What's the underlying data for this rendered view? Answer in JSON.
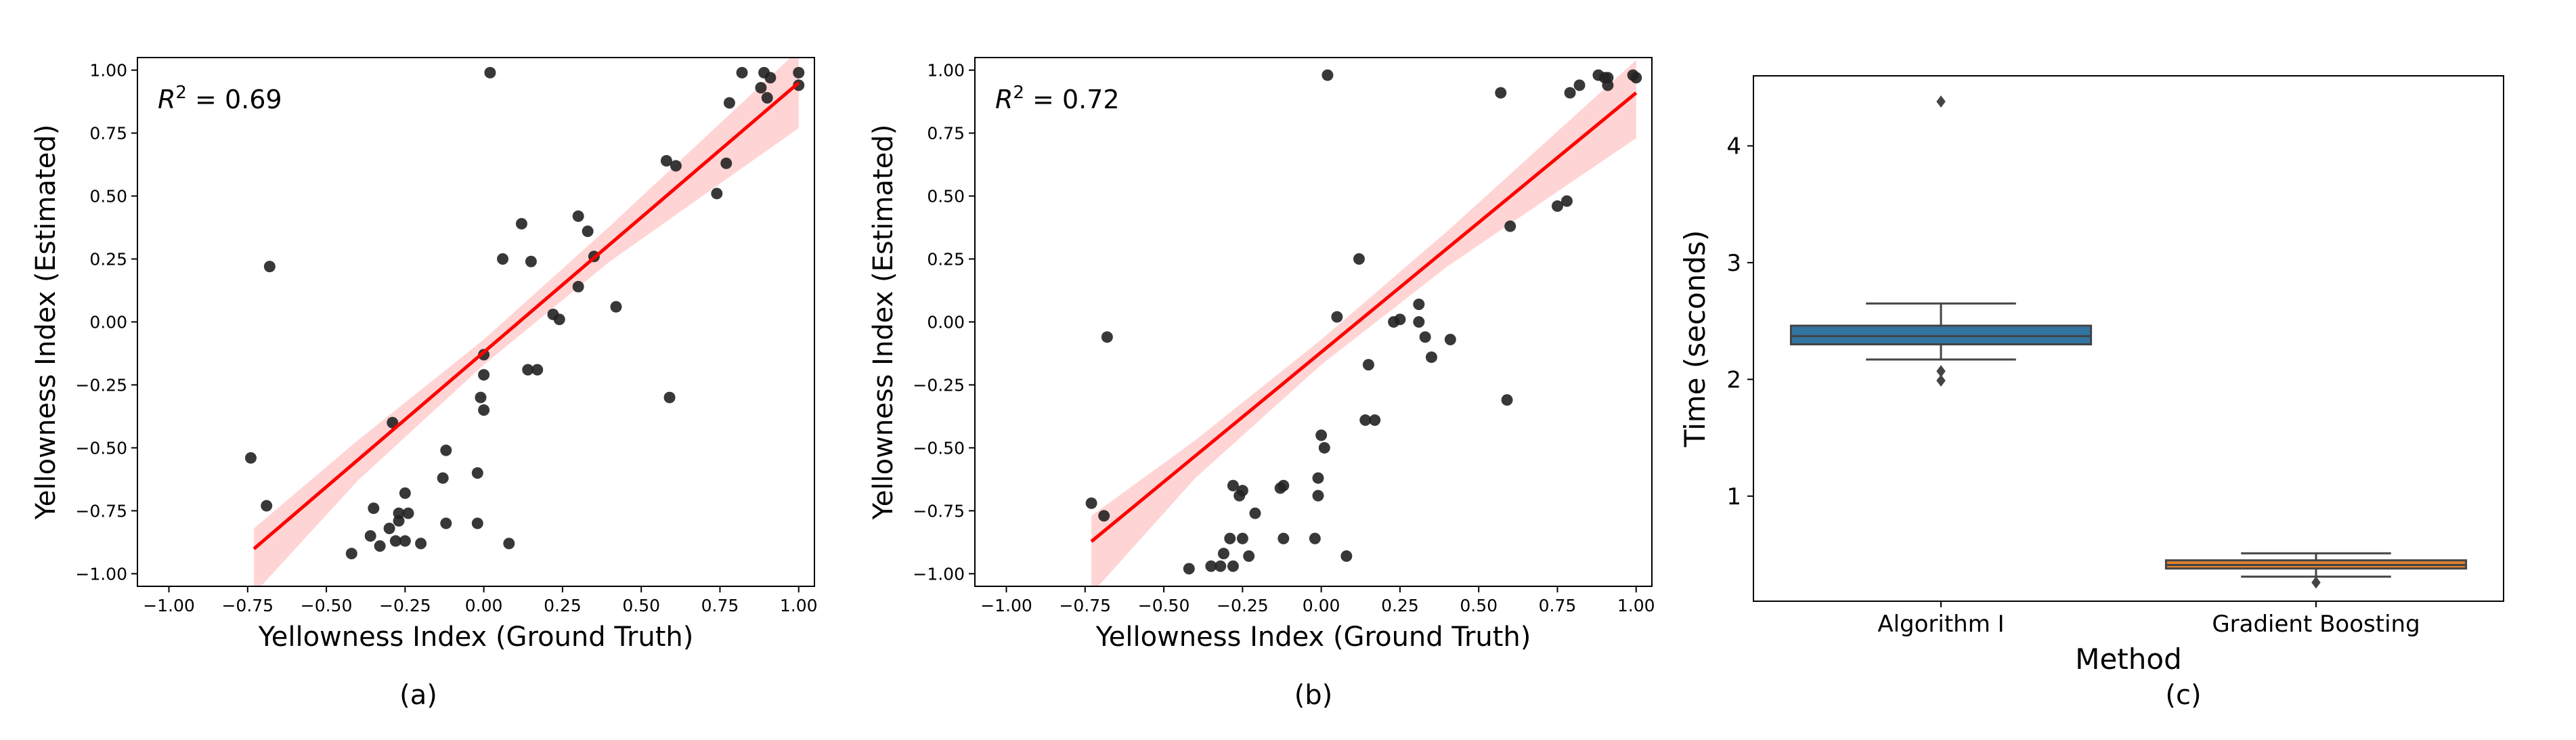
{
  "chart_data": [
    {
      "type": "scatter",
      "panel_label": "(a)",
      "annotation": "R² = 0.69",
      "annotation_parts": {
        "prefix": "R",
        "superscript": "2",
        "suffix": " = 0.69"
      },
      "xlabel": "Yellowness Index (Ground Truth)",
      "ylabel": "Yellowness Index (Estimated)",
      "xlim": [
        -1.1,
        1.05
      ],
      "ylim": [
        -1.05,
        1.05
      ],
      "xticks": [
        -1.0,
        -0.75,
        -0.5,
        -0.25,
        0.0,
        0.25,
        0.5,
        0.75,
        1.0
      ],
      "xtick_labels": [
        "−1.00",
        "−0.75",
        "−0.50",
        "−0.25",
        "0.00",
        "0.25",
        "0.50",
        "0.75",
        "1.00"
      ],
      "yticks": [
        -1.0,
        -0.75,
        -0.5,
        -0.25,
        0.0,
        0.25,
        0.5,
        0.75,
        1.0
      ],
      "ytick_labels": [
        "−1.00",
        "−0.75",
        "−0.50",
        "−0.25",
        "0.00",
        "0.25",
        "0.50",
        "0.75",
        "1.00"
      ],
      "grid": false,
      "point_color": "#222222",
      "fit_color": "#ff0000",
      "band_color": "#ffcccc",
      "regression": {
        "x_range": [
          -0.73,
          1.0
        ],
        "intercept": -0.12,
        "slope": 1.07
      },
      "confidence_band": [
        {
          "x": -0.73,
          "lower": -1.08,
          "upper": -0.82
        },
        {
          "x": -0.4,
          "lower": -0.63,
          "upper": -0.47
        },
        {
          "x": 0.0,
          "lower": -0.17,
          "upper": -0.07
        },
        {
          "x": 0.4,
          "lower": 0.24,
          "upper": 0.38
        },
        {
          "x": 1.0,
          "lower": 0.77,
          "upper": 1.08
        }
      ],
      "points": [
        [
          0.02,
          0.99
        ],
        [
          0.82,
          0.99
        ],
        [
          0.89,
          0.99
        ],
        [
          0.91,
          0.97
        ],
        [
          1.0,
          0.99
        ],
        [
          1.0,
          0.94
        ],
        [
          0.88,
          0.93
        ],
        [
          0.9,
          0.89
        ],
        [
          0.78,
          0.87
        ],
        [
          0.58,
          0.64
        ],
        [
          0.61,
          0.62
        ],
        [
          0.77,
          0.63
        ],
        [
          0.74,
          0.51
        ],
        [
          0.12,
          0.39
        ],
        [
          0.3,
          0.42
        ],
        [
          0.33,
          0.36
        ],
        [
          0.06,
          0.25
        ],
        [
          0.15,
          0.24
        ],
        [
          0.35,
          0.26
        ],
        [
          0.3,
          0.14
        ],
        [
          0.42,
          0.06
        ],
        [
          -0.68,
          0.22
        ],
        [
          0.22,
          0.03
        ],
        [
          0.24,
          0.01
        ],
        [
          0.0,
          -0.13
        ],
        [
          0.0,
          -0.21
        ],
        [
          0.14,
          -0.19
        ],
        [
          0.17,
          -0.19
        ],
        [
          -0.01,
          -0.3
        ],
        [
          0.0,
          -0.35
        ],
        [
          0.59,
          -0.3
        ],
        [
          -0.29,
          -0.4
        ],
        [
          -0.74,
          -0.54
        ],
        [
          -0.12,
          -0.51
        ],
        [
          -0.69,
          -0.73
        ],
        [
          -0.13,
          -0.62
        ],
        [
          -0.02,
          -0.6
        ],
        [
          -0.35,
          -0.74
        ],
        [
          -0.25,
          -0.68
        ],
        [
          -0.27,
          -0.76
        ],
        [
          -0.24,
          -0.76
        ],
        [
          -0.27,
          -0.79
        ],
        [
          -0.12,
          -0.8
        ],
        [
          -0.02,
          -0.8
        ],
        [
          -0.3,
          -0.82
        ],
        [
          -0.36,
          -0.85
        ],
        [
          -0.28,
          -0.87
        ],
        [
          -0.25,
          -0.87
        ],
        [
          -0.2,
          -0.88
        ],
        [
          0.08,
          -0.88
        ],
        [
          -0.42,
          -0.92
        ],
        [
          -0.33,
          -0.89
        ]
      ]
    },
    {
      "type": "scatter",
      "panel_label": "(b)",
      "annotation": "R² = 0.72",
      "annotation_parts": {
        "prefix": "R",
        "superscript": "2",
        "suffix": " = 0.72"
      },
      "xlabel": "Yellowness Index (Ground Truth)",
      "ylabel": "Yellowness Index (Estimated)",
      "xlim": [
        -1.1,
        1.05
      ],
      "ylim": [
        -1.05,
        1.05
      ],
      "xticks": [
        -1.0,
        -0.75,
        -0.5,
        -0.25,
        0.0,
        0.25,
        0.5,
        0.75,
        1.0
      ],
      "xtick_labels": [
        "−1.00",
        "−0.75",
        "−0.50",
        "−0.25",
        "0.00",
        "0.25",
        "0.50",
        "0.75",
        "1.00"
      ],
      "yticks": [
        -1.0,
        -0.75,
        -0.5,
        -0.25,
        0.0,
        0.25,
        0.5,
        0.75,
        1.0
      ],
      "ytick_labels": [
        "−1.00",
        "−0.75",
        "−0.50",
        "−0.25",
        "0.00",
        "0.25",
        "0.50",
        "0.75",
        "1.00"
      ],
      "grid": false,
      "point_color": "#222222",
      "fit_color": "#ff0000",
      "band_color": "#ffcccc",
      "regression": {
        "x_range": [
          -0.73,
          1.0
        ],
        "intercept": -0.12,
        "slope": 1.03
      },
      "confidence_band": [
        {
          "x": -0.73,
          "lower": -1.08,
          "upper": -0.77
        },
        {
          "x": -0.4,
          "lower": -0.62,
          "upper": -0.47
        },
        {
          "x": 0.0,
          "lower": -0.17,
          "upper": -0.07
        },
        {
          "x": 0.4,
          "lower": 0.22,
          "upper": 0.36
        },
        {
          "x": 1.0,
          "lower": 0.73,
          "upper": 1.04
        }
      ],
      "points": [
        [
          0.02,
          0.98
        ],
        [
          0.88,
          0.98
        ],
        [
          0.9,
          0.97
        ],
        [
          0.91,
          0.97
        ],
        [
          0.99,
          0.98
        ],
        [
          1.0,
          0.97
        ],
        [
          0.82,
          0.94
        ],
        [
          0.91,
          0.94
        ],
        [
          0.79,
          0.91
        ],
        [
          0.57,
          0.91
        ],
        [
          0.78,
          0.48
        ],
        [
          0.75,
          0.46
        ],
        [
          0.6,
          0.38
        ],
        [
          0.12,
          0.25
        ],
        [
          0.05,
          0.02
        ],
        [
          0.31,
          0.07
        ],
        [
          0.25,
          0.01
        ],
        [
          0.23,
          0.0
        ],
        [
          0.31,
          0.0
        ],
        [
          -0.68,
          -0.06
        ],
        [
          0.33,
          -0.06
        ],
        [
          0.41,
          -0.07
        ],
        [
          0.35,
          -0.14
        ],
        [
          0.15,
          -0.17
        ],
        [
          0.59,
          -0.31
        ],
        [
          0.14,
          -0.39
        ],
        [
          0.17,
          -0.39
        ],
        [
          0.0,
          -0.45
        ],
        [
          0.01,
          -0.5
        ],
        [
          -0.01,
          -0.62
        ],
        [
          -0.01,
          -0.69
        ],
        [
          -0.12,
          -0.65
        ],
        [
          -0.13,
          -0.66
        ],
        [
          -0.73,
          -0.72
        ],
        [
          -0.69,
          -0.77
        ],
        [
          -0.28,
          -0.65
        ],
        [
          -0.25,
          -0.67
        ],
        [
          -0.26,
          -0.69
        ],
        [
          -0.21,
          -0.76
        ],
        [
          -0.02,
          -0.86
        ],
        [
          -0.12,
          -0.86
        ],
        [
          -0.25,
          -0.86
        ],
        [
          -0.29,
          -0.86
        ],
        [
          0.08,
          -0.93
        ],
        [
          -0.31,
          -0.92
        ],
        [
          -0.23,
          -0.93
        ],
        [
          -0.32,
          -0.97
        ],
        [
          -0.28,
          -0.97
        ],
        [
          -0.35,
          -0.97
        ],
        [
          -0.42,
          -0.98
        ]
      ]
    },
    {
      "type": "box",
      "panel_label": "(c)",
      "xlabel": "Method",
      "ylabel": "Time (seconds)",
      "categories": [
        "Algorithm I",
        "Gradient Boosting"
      ],
      "ylim": [
        0.1,
        4.6
      ],
      "yticks": [
        1,
        2,
        3,
        4
      ],
      "ytick_labels": [
        "1",
        "2",
        "3",
        "4"
      ],
      "grid": false,
      "boxes": [
        {
          "name": "Algorithm I",
          "color": "#3274a1",
          "whisker_low": 2.17,
          "q1": 2.3,
          "median": 2.37,
          "q3": 2.46,
          "whisker_high": 2.65,
          "outliers": [
            4.38,
            2.07,
            1.99
          ]
        },
        {
          "name": "Gradient Boosting",
          "color": "#e1812c",
          "whisker_low": 0.31,
          "q1": 0.38,
          "median": 0.41,
          "q3": 0.45,
          "whisker_high": 0.51,
          "outliers": [
            0.26
          ]
        }
      ]
    }
  ]
}
